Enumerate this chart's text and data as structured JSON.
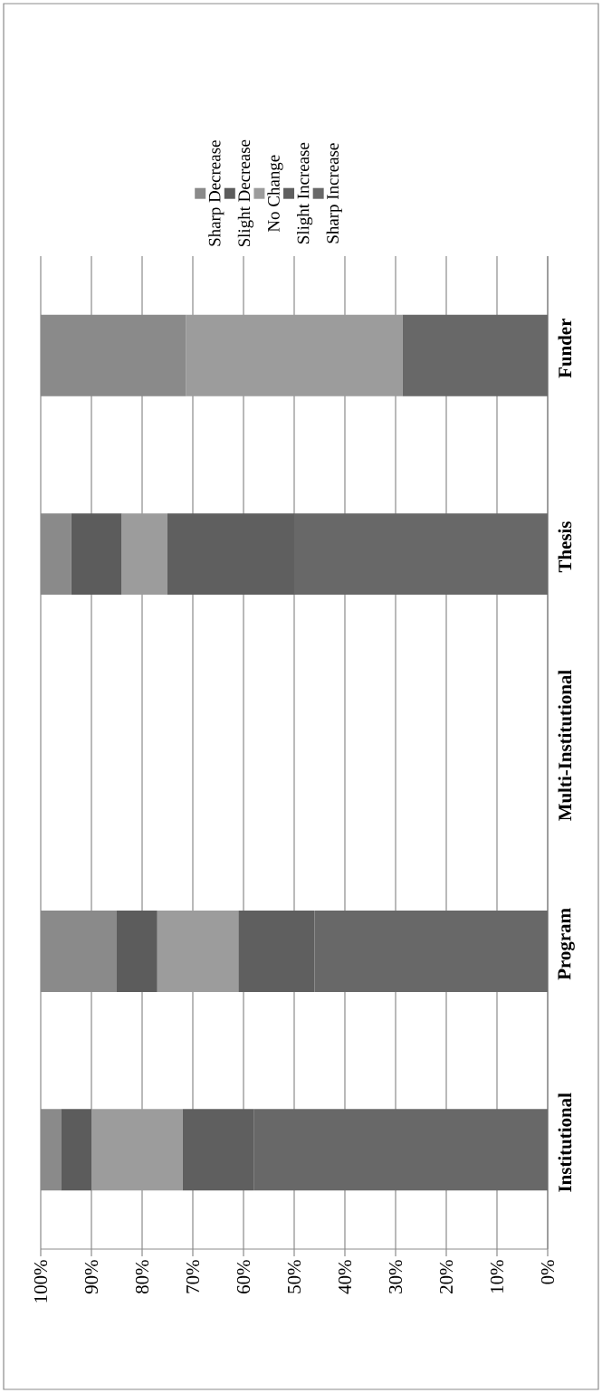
{
  "chart_data": {
    "type": "bar",
    "stacked": true,
    "orientation": "horizontal",
    "categories": [
      "Funder",
      "Thesis",
      "Multi-Institutional",
      "Program",
      "Institutional"
    ],
    "series": [
      {
        "name": "Sharp Increase",
        "color": "#686868",
        "values": [
          28.6,
          50,
          0,
          46,
          58
        ]
      },
      {
        "name": "Slight Increase",
        "color": "#5f5f5f",
        "values": [
          0,
          25,
          0,
          15,
          14
        ]
      },
      {
        "name": "No Change",
        "color": "#9c9c9c",
        "values": [
          42.8,
          9,
          0,
          16,
          18
        ]
      },
      {
        "name": "Slight Decrease",
        "color": "#5c5c5c",
        "values": [
          0,
          10,
          0,
          8,
          6
        ]
      },
      {
        "name": "Sharp Decrease",
        "color": "#8a8a8a",
        "values": [
          28.6,
          6,
          0,
          15,
          4
        ]
      }
    ],
    "xlim": [
      100,
      0
    ],
    "xticks": [
      {
        "value": 100,
        "label": "100%"
      },
      {
        "value": 90,
        "label": "90%"
      },
      {
        "value": 80,
        "label": "80%"
      },
      {
        "value": 70,
        "label": "70%"
      },
      {
        "value": 60,
        "label": "60%"
      },
      {
        "value": 50,
        "label": "50%"
      },
      {
        "value": 40,
        "label": "40%"
      },
      {
        "value": 30,
        "label": "30%"
      },
      {
        "value": 20,
        "label": "20%"
      },
      {
        "value": 10,
        "label": "10%"
      },
      {
        "value": 0,
        "label": "0%"
      }
    ],
    "grid": "x",
    "legend": "top"
  }
}
